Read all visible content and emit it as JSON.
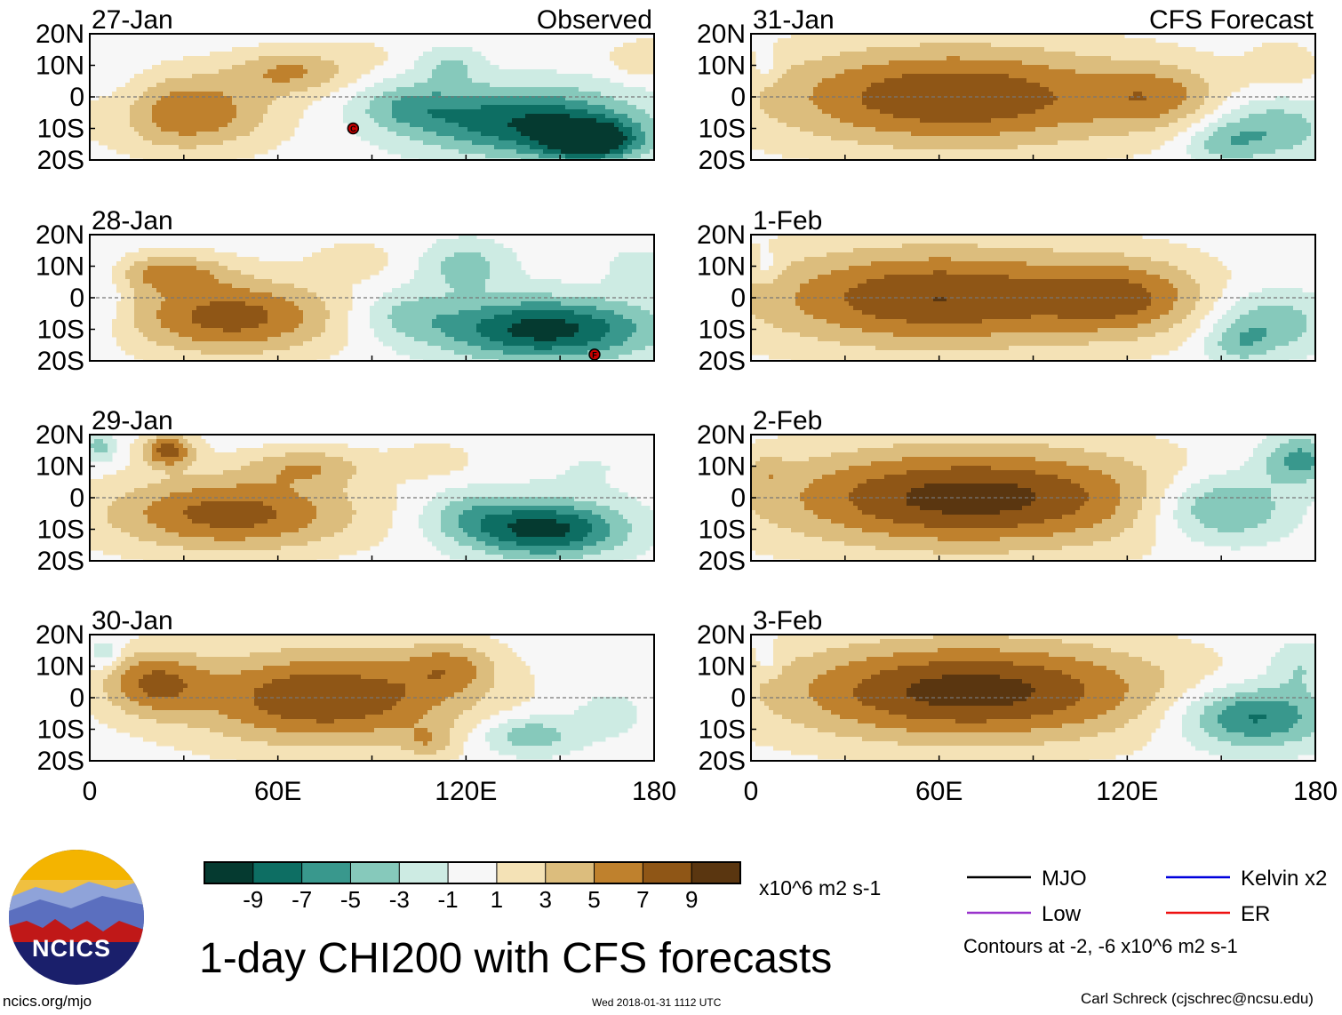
{
  "page": {
    "title": "1-day CHI200 with CFS forecasts",
    "site": "ncics.org/mjo",
    "timestamp": "Wed 2018-01-31 1112 UTC",
    "author": "Carl Schreck (cjschrec@ncsu.edu)",
    "logo_text": "NCICS"
  },
  "chart_data": {
    "type": "heatmap",
    "title": "1-day CHI200 with CFS forecasts",
    "variable": "CHI200",
    "units": "x10^6 m2 s-1",
    "x_ticks": [
      "0",
      "60E",
      "120E",
      "180"
    ],
    "y_ticks": [
      "20N",
      "10N",
      "0",
      "10S",
      "20S"
    ],
    "xlim": [
      0,
      180
    ],
    "ylim": [
      -20,
      20
    ],
    "columns": [
      {
        "label": "Observed",
        "source": "observed"
      },
      {
        "label": "CFS Forecast",
        "source": "forecast"
      }
    ],
    "panels": [
      {
        "date": "27-Jan",
        "col": 0,
        "row": 0,
        "header": "Observed",
        "blobs": [
          [
            30,
            -5,
            28,
            12,
            7
          ],
          [
            65,
            8,
            20,
            7,
            5
          ],
          [
            10,
            -2,
            12,
            12,
            -2
          ],
          [
            140,
            -8,
            35,
            11,
            -9
          ],
          [
            160,
            -14,
            15,
            6,
            -10
          ],
          [
            115,
            10,
            10,
            6,
            -3
          ],
          [
            102,
            -3,
            18,
            8,
            -4
          ],
          [
            90,
            14,
            12,
            5,
            1
          ],
          [
            178,
            12,
            12,
            6,
            3
          ]
        ],
        "tcs": [
          {
            "lon": 84,
            "lat": -10,
            "letter": "C"
          }
        ]
      },
      {
        "date": "28-Jan",
        "col": 0,
        "row": 1,
        "blobs": [
          [
            45,
            -6,
            34,
            12,
            8
          ],
          [
            25,
            8,
            18,
            6,
            5
          ],
          [
            5,
            0,
            8,
            14,
            -2
          ],
          [
            145,
            -10,
            35,
            10,
            -10
          ],
          [
            120,
            10,
            14,
            8,
            -4
          ],
          [
            100,
            -5,
            16,
            8,
            -3
          ],
          [
            175,
            10,
            10,
            6,
            -2
          ],
          [
            85,
            12,
            14,
            6,
            2
          ]
        ],
        "tcs": [
          {
            "lon": 161,
            "lat": -18,
            "letter": "F"
          }
        ]
      },
      {
        "date": "29-Jan",
        "col": 0,
        "row": 2,
        "blobs": [
          [
            45,
            -5,
            40,
            12,
            8
          ],
          [
            70,
            10,
            20,
            6,
            4
          ],
          [
            25,
            15,
            8,
            5,
            8
          ],
          [
            3,
            16,
            5,
            5,
            -4
          ],
          [
            145,
            -10,
            25,
            9,
            -10
          ],
          [
            120,
            -5,
            15,
            8,
            -3
          ],
          [
            110,
            12,
            14,
            6,
            2
          ],
          [
            160,
            10,
            25,
            8,
            -1
          ]
        ],
        "tcs": []
      },
      {
        "date": "30-Jan",
        "col": 0,
        "row": 3,
        "blobs": [
          [
            75,
            0,
            45,
            15,
            9
          ],
          [
            20,
            5,
            16,
            10,
            6
          ],
          [
            115,
            10,
            15,
            8,
            4
          ],
          [
            140,
            -12,
            15,
            6,
            -5
          ],
          [
            5,
            14,
            5,
            5,
            -3
          ],
          [
            165,
            -5,
            12,
            8,
            -2
          ],
          [
            108,
            -14,
            8,
            5,
            3
          ]
        ],
        "tcs": []
      },
      {
        "date": "31-Jan",
        "col": 1,
        "row": 0,
        "header": "CFS Forecast",
        "blobs": [
          [
            65,
            0,
            60,
            16,
            9
          ],
          [
            130,
            0,
            20,
            10,
            4
          ],
          [
            165,
            -10,
            20,
            10,
            -5
          ],
          [
            150,
            -15,
            12,
            6,
            -3
          ],
          [
            170,
            10,
            12,
            8,
            2
          ],
          [
            5,
            10,
            4,
            5,
            -2
          ]
        ],
        "tcs": []
      },
      {
        "date": "1-Feb",
        "col": 1,
        "row": 1,
        "blobs": [
          [
            60,
            0,
            60,
            16,
            9
          ],
          [
            120,
            0,
            25,
            12,
            5
          ],
          [
            165,
            -8,
            18,
            10,
            -5
          ],
          [
            155,
            -15,
            10,
            6,
            -3
          ],
          [
            5,
            10,
            4,
            5,
            -2
          ],
          [
            175,
            14,
            10,
            6,
            -1
          ]
        ],
        "tcs": []
      },
      {
        "date": "2-Feb",
        "col": 1,
        "row": 2,
        "blobs": [
          [
            70,
            0,
            65,
            16,
            10
          ],
          [
            150,
            -3,
            22,
            11,
            -7
          ],
          [
            175,
            12,
            12,
            8,
            -6
          ],
          [
            5,
            8,
            6,
            6,
            2
          ]
        ],
        "tcs": []
      },
      {
        "date": "3-Feb",
        "col": 1,
        "row": 3,
        "blobs": [
          [
            70,
            2,
            62,
            16,
            10
          ],
          [
            160,
            -6,
            24,
            10,
            -8
          ],
          [
            175,
            10,
            10,
            8,
            -3
          ],
          [
            5,
            12,
            4,
            5,
            -2
          ]
        ],
        "tcs": []
      }
    ],
    "colorbar": {
      "labels": [
        "-9",
        "-7",
        "-5",
        "-3",
        "-1",
        "1",
        "3",
        "5",
        "7",
        "9"
      ],
      "colors": [
        "#053a30",
        "#0d6e63",
        "#39988d",
        "#86c9bb",
        "#cdebe3",
        "#f7f7f7",
        "#f4e2b6",
        "#dcbd7d",
        "#bf812d",
        "#8f5616",
        "#5a3610"
      ],
      "units": "x10^6 m2 s-1"
    },
    "legend": {
      "items": [
        {
          "label": "MJO",
          "color": "#000000"
        },
        {
          "label": "Kelvin x2",
          "color": "#0000dd"
        },
        {
          "label": "Low",
          "color": "#9933cc"
        },
        {
          "label": "ER",
          "color": "#ee1111"
        }
      ],
      "note": "Contours at -2, -6 x10^6 m2 s-1"
    }
  }
}
